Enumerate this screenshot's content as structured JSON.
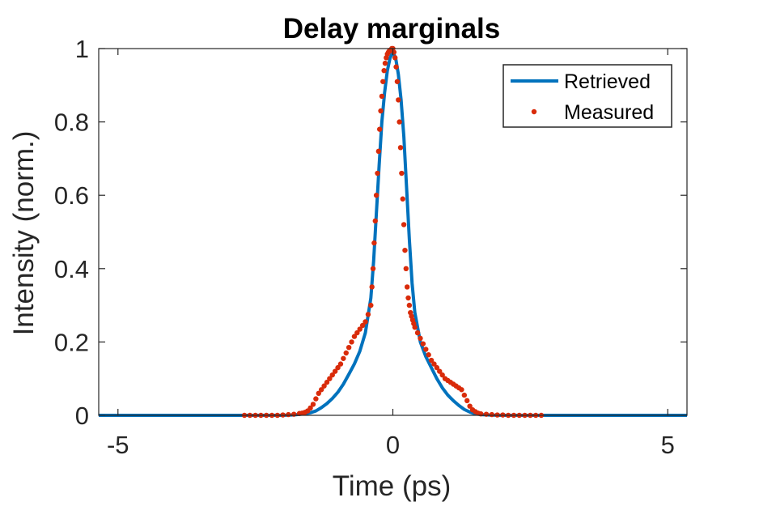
{
  "chart_data": {
    "type": "line",
    "title": "Delay marginals",
    "xlabel": "Time (ps)",
    "ylabel": "Intensity (norm.)",
    "xlim": [
      -5.35,
      5.35
    ],
    "ylim": [
      0,
      1
    ],
    "x_ticks": [
      -5,
      0,
      5
    ],
    "x_tick_labels": [
      "-5",
      "0",
      "5"
    ],
    "y_ticks": [
      0,
      0.2,
      0.4,
      0.6,
      0.8,
      1
    ],
    "y_tick_labels": [
      "0",
      "0.2",
      "0.4",
      "0.6",
      "0.8",
      "1"
    ],
    "grid": false,
    "legend_position": "top-right",
    "colors": {
      "retrieved": "#0072BD",
      "measured": "#D92B0A",
      "axis": "#262626"
    },
    "series": [
      {
        "name": "Retrieved",
        "style": "line",
        "x": [
          -5.35,
          -2.0,
          -1.8,
          -1.6,
          -1.5,
          -1.4,
          -1.3,
          -1.2,
          -1.1,
          -1.0,
          -0.9,
          -0.8,
          -0.7,
          -0.6,
          -0.5,
          -0.4,
          -0.35,
          -0.3,
          -0.25,
          -0.2,
          -0.15,
          -0.1,
          -0.05,
          0.0,
          0.05,
          0.1,
          0.15,
          0.2,
          0.25,
          0.3,
          0.35,
          0.4,
          0.5,
          0.6,
          0.7,
          0.8,
          0.9,
          1.0,
          1.1,
          1.2,
          1.3,
          1.4,
          1.5,
          1.6,
          1.8,
          2.0,
          5.35
        ],
        "y": [
          0,
          0,
          0.001,
          0.004,
          0.007,
          0.012,
          0.021,
          0.032,
          0.046,
          0.063,
          0.085,
          0.112,
          0.14,
          0.175,
          0.225,
          0.32,
          0.42,
          0.55,
          0.68,
          0.8,
          0.88,
          0.94,
          0.975,
          0.99,
          0.975,
          0.93,
          0.86,
          0.76,
          0.62,
          0.48,
          0.36,
          0.28,
          0.2,
          0.16,
          0.13,
          0.1,
          0.075,
          0.055,
          0.04,
          0.027,
          0.016,
          0.009,
          0.004,
          0.002,
          0.0005,
          0,
          0
        ]
      },
      {
        "name": "Measured",
        "style": "markers",
        "x": [
          -2.7,
          -2.6,
          -2.5,
          -2.4,
          -2.3,
          -2.2,
          -2.1,
          -2.0,
          -1.9,
          -1.8,
          -1.7,
          -1.65,
          -1.6,
          -1.55,
          -1.5,
          -1.45,
          -1.4,
          -1.35,
          -1.3,
          -1.25,
          -1.2,
          -1.15,
          -1.1,
          -1.05,
          -1.0,
          -0.95,
          -0.9,
          -0.85,
          -0.8,
          -0.75,
          -0.7,
          -0.65,
          -0.6,
          -0.55,
          -0.5,
          -0.45,
          -0.4,
          -0.38,
          -0.36,
          -0.34,
          -0.32,
          -0.3,
          -0.28,
          -0.26,
          -0.24,
          -0.22,
          -0.2,
          -0.18,
          -0.16,
          -0.14,
          -0.12,
          -0.1,
          -0.08,
          -0.06,
          -0.04,
          -0.02,
          0.0,
          0.02,
          0.04,
          0.06,
          0.08,
          0.1,
          0.12,
          0.14,
          0.16,
          0.18,
          0.2,
          0.22,
          0.24,
          0.26,
          0.28,
          0.3,
          0.32,
          0.34,
          0.36,
          0.38,
          0.4,
          0.45,
          0.5,
          0.55,
          0.6,
          0.65,
          0.7,
          0.75,
          0.8,
          0.85,
          0.9,
          0.95,
          1.0,
          1.05,
          1.1,
          1.15,
          1.2,
          1.25,
          1.3,
          1.35,
          1.4,
          1.45,
          1.5,
          1.55,
          1.6,
          1.7,
          1.8,
          1.9,
          2.0,
          2.1,
          2.2,
          2.3,
          2.4,
          2.5,
          2.6,
          2.7
        ],
        "y": [
          0,
          0,
          0,
          0,
          0,
          0,
          0,
          0.001,
          0.002,
          0.003,
          0.005,
          0.006,
          0.008,
          0.012,
          0.02,
          0.03,
          0.045,
          0.06,
          0.07,
          0.08,
          0.09,
          0.1,
          0.11,
          0.12,
          0.13,
          0.14,
          0.155,
          0.17,
          0.185,
          0.2,
          0.215,
          0.225,
          0.235,
          0.245,
          0.255,
          0.275,
          0.3,
          0.35,
          0.4,
          0.47,
          0.53,
          0.6,
          0.66,
          0.72,
          0.78,
          0.83,
          0.87,
          0.91,
          0.94,
          0.96,
          0.975,
          0.985,
          0.99,
          0.995,
          0.995,
          1.0,
          1.0,
          0.99,
          0.975,
          0.95,
          0.91,
          0.86,
          0.8,
          0.73,
          0.66,
          0.59,
          0.52,
          0.45,
          0.4,
          0.35,
          0.32,
          0.3,
          0.28,
          0.27,
          0.26,
          0.25,
          0.24,
          0.225,
          0.21,
          0.195,
          0.18,
          0.165,
          0.15,
          0.14,
          0.13,
          0.12,
          0.11,
          0.1,
          0.095,
          0.09,
          0.085,
          0.08,
          0.075,
          0.07,
          0.055,
          0.04,
          0.025,
          0.015,
          0.01,
          0.006,
          0.004,
          0.003,
          0.002,
          0.001,
          0.001,
          0,
          0,
          0,
          0,
          0,
          0,
          0
        ]
      }
    ]
  }
}
